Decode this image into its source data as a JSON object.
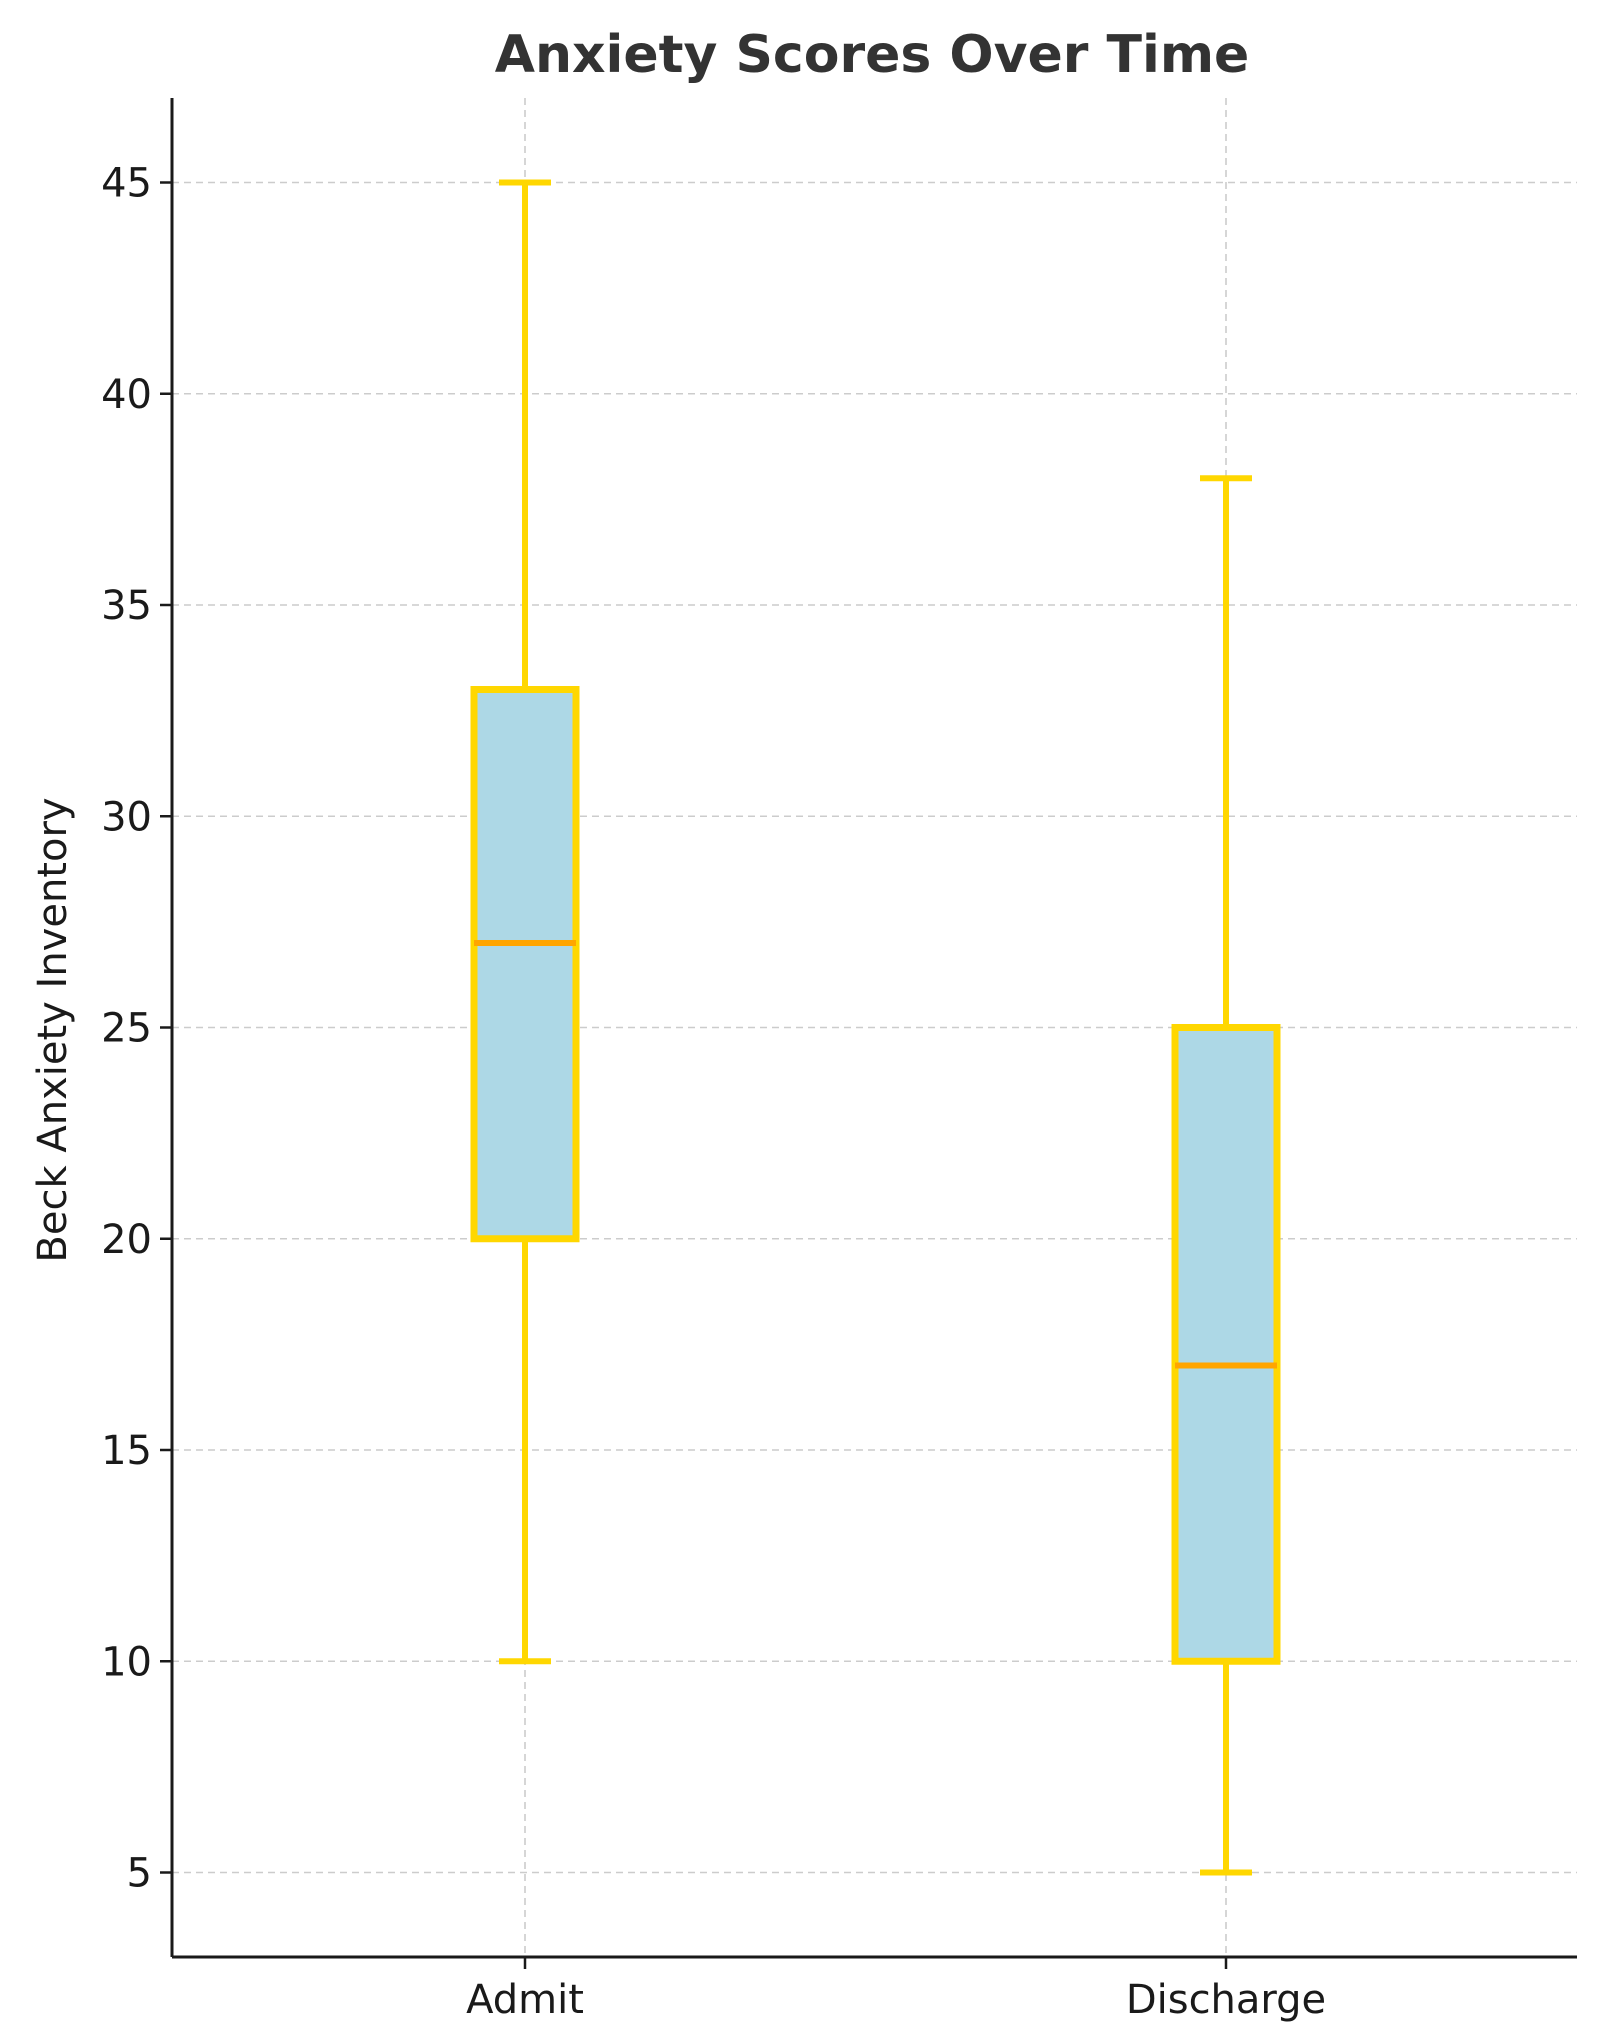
{
  "chart_data": {
    "type": "box",
    "title": "Anxiety Scores Over Time",
    "xlabel": "",
    "ylabel": "Beck Anxiety Inventory",
    "categories": [
      "Admit",
      "Discharge"
    ],
    "boxes": [
      {
        "category": "Admit",
        "whisker_low": 10,
        "q1": 20,
        "median": 27,
        "q3": 33,
        "whisker_high": 45
      },
      {
        "category": "Discharge",
        "whisker_low": 5,
        "q1": 10,
        "median": 17,
        "q3": 25,
        "whisker_high": 38
      }
    ],
    "yticks": [
      5,
      10,
      15,
      20,
      25,
      30,
      35,
      40,
      45
    ],
    "ylim": [
      3,
      47
    ],
    "grid": true,
    "colors": {
      "box_fill": "#add8e6",
      "box_edge": "#ffd700",
      "whisker": "#ffd700",
      "median": "#ffa500",
      "grid": "#cccccc",
      "axis": "#1a1a1a"
    }
  }
}
